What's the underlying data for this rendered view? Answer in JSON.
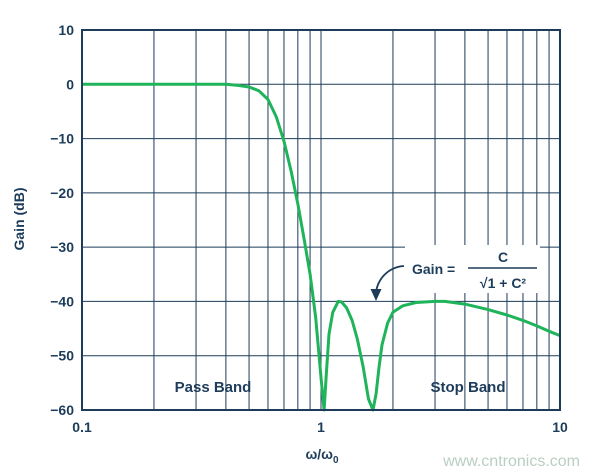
{
  "chart_data": {
    "type": "line",
    "xscale": "log",
    "xlim": [
      0.1,
      10
    ],
    "ylim": [
      -60,
      10
    ],
    "xlabel": "ω/ω",
    "xlabel_sub": "0",
    "ylabel": "Gain (dB)",
    "xticks": [
      {
        "value": 0.1,
        "label": "0.1"
      },
      {
        "value": 1,
        "label": "1"
      },
      {
        "value": 10,
        "label": "10"
      }
    ],
    "yticks": [
      10,
      0,
      -10,
      -20,
      -30,
      -40,
      -50,
      -60
    ],
    "ytick_labels": [
      "10",
      "0",
      "−10",
      "−20",
      "−30",
      "−40",
      "−50",
      "−60"
    ],
    "grid": true,
    "series": [
      {
        "color": "#1fb35a",
        "x": [
          0.1,
          0.2,
          0.3,
          0.4,
          0.45,
          0.5,
          0.55,
          0.6,
          0.65,
          0.7,
          0.75,
          0.8,
          0.85,
          0.9,
          0.95,
          1.0,
          1.03,
          1.05,
          1.08,
          1.12,
          1.18,
          1.22,
          1.28,
          1.35,
          1.42,
          1.5,
          1.58,
          1.65,
          1.7,
          1.75,
          1.8,
          1.9,
          2.0,
          2.2,
          2.5,
          3.0,
          3.3,
          4.0,
          5.0,
          6.0,
          7.0,
          8.0,
          9.0,
          10.0
        ],
        "y": [
          0,
          0,
          0,
          0,
          -0.2,
          -0.5,
          -1.2,
          -2.8,
          -6,
          -10.5,
          -16,
          -22,
          -28.5,
          -35,
          -43,
          -54,
          -60,
          -54,
          -46,
          -42,
          -40,
          -40.1,
          -41.2,
          -43.5,
          -47,
          -52,
          -58,
          -60,
          -57,
          -52,
          -48,
          -44,
          -42,
          -40.8,
          -40.2,
          -40,
          -40,
          -40.5,
          -41.5,
          -42.5,
          -43.5,
          -44.5,
          -45.5,
          -46.3
        ]
      }
    ],
    "annotations": {
      "pass_band": "Pass Band",
      "stop_band": "Stop Band",
      "formula_prefix": "Gain =",
      "formula_numerator": "C",
      "formula_denominator": "√1 + C²"
    }
  },
  "watermark": "www.cntronics.com"
}
